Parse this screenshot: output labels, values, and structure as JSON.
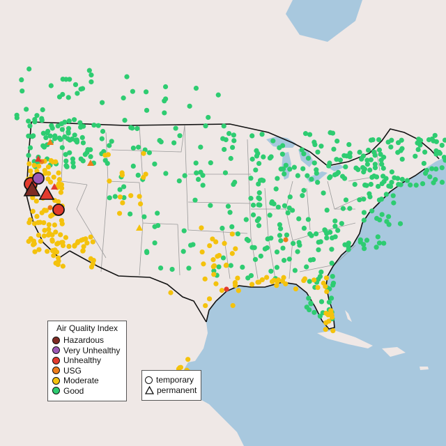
{
  "legend": {
    "title": "Air Quality Index",
    "categories": [
      {
        "label": "Hazardous",
        "color": "#7e2b24"
      },
      {
        "label": "Very Unhealthy",
        "color": "#9b59b6"
      },
      {
        "label": "Unhealthy",
        "color": "#e23b2e"
      },
      {
        "label": "USG",
        "color": "#ee7d1a"
      },
      {
        "label": "Moderate",
        "color": "#f4c20d"
      },
      {
        "label": "Good",
        "color": "#2ecc71"
      }
    ]
  },
  "monitor_legend": {
    "temporary": "temporary",
    "permanent": "permanent"
  },
  "map": {
    "ocean_color": "#a8c8de",
    "land_color": "#efe8e6",
    "border_color": "#111111"
  }
}
